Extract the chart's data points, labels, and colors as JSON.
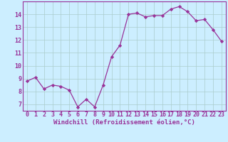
{
  "x": [
    0,
    1,
    2,
    3,
    4,
    5,
    6,
    7,
    8,
    9,
    10,
    11,
    12,
    13,
    14,
    15,
    16,
    17,
    18,
    19,
    20,
    21,
    22,
    23
  ],
  "y": [
    8.8,
    9.1,
    8.2,
    8.5,
    8.4,
    8.1,
    6.8,
    7.4,
    6.8,
    8.5,
    10.7,
    11.6,
    14.0,
    14.1,
    13.8,
    13.9,
    13.9,
    14.4,
    14.6,
    14.2,
    13.5,
    13.6,
    12.8,
    11.9
  ],
  "line_color": "#993399",
  "marker": "D",
  "markersize": 2.2,
  "linewidth": 0.9,
  "bg_color": "#cceeff",
  "grid_color": "#aacccc",
  "xlabel": "Windchill (Refroidissement éolien,°C)",
  "xlabel_fontsize": 6.5,
  "tick_fontsize": 6.0,
  "ylim": [
    6.5,
    15.0
  ],
  "yticks": [
    7,
    8,
    9,
    10,
    11,
    12,
    13,
    14
  ],
  "xticks": [
    0,
    1,
    2,
    3,
    4,
    5,
    6,
    7,
    8,
    9,
    10,
    11,
    12,
    13,
    14,
    15,
    16,
    17,
    18,
    19,
    20,
    21,
    22,
    23
  ]
}
